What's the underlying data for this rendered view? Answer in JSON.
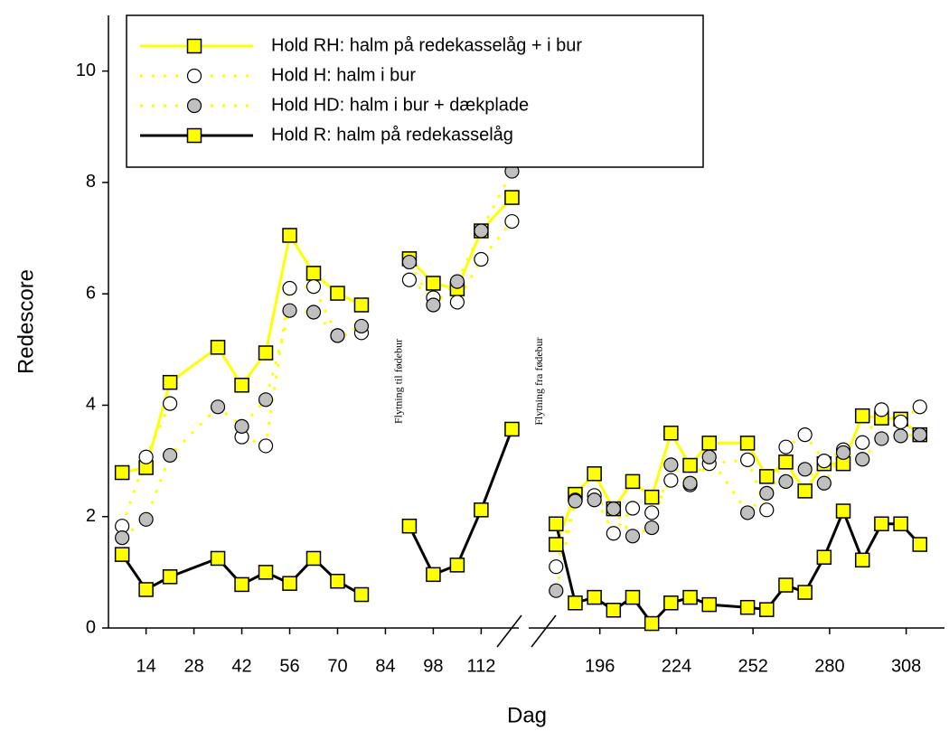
{
  "chart_data": {
    "type": "line",
    "xlabel": "Dag",
    "ylabel": "Redescore",
    "xlim": [
      3,
      322
    ],
    "x_break": [
      123,
      170
    ],
    "ylim": [
      0,
      11
    ],
    "yticks": [
      0,
      2,
      4,
      6,
      8,
      10
    ],
    "xticks": [
      14,
      28,
      42,
      56,
      70,
      84,
      98,
      112,
      196,
      224,
      252,
      280,
      308
    ],
    "x": [
      7,
      14,
      21,
      35,
      42,
      49,
      56,
      63,
      70,
      77,
      84,
      91,
      98,
      105,
      112,
      121,
      150,
      180,
      187,
      194,
      201,
      208,
      215,
      222,
      229,
      236,
      250,
      257,
      264,
      271,
      278,
      285,
      292,
      299,
      306,
      313
    ],
    "series": [
      {
        "name": "Hold RH: halm på redekasselåg + i bur",
        "color": "#ffff00",
        "line_style": "solid",
        "marker": "square",
        "marker_color": "#ffff00",
        "values": [
          2.79,
          2.88,
          4.41,
          5.04,
          4.36,
          4.94,
          7.05,
          6.37,
          6.01,
          5.8,
          null,
          6.63,
          6.19,
          6.09,
          7.13,
          7.73,
          null,
          1.5,
          2.4,
          2.77,
          2.14,
          2.63,
          2.35,
          3.5,
          2.92,
          3.32,
          3.32,
          2.72,
          2.98,
          2.46,
          2.95,
          2.95,
          3.81,
          3.77,
          3.75,
          3.47
        ]
      },
      {
        "name": "Hold H: halm i bur",
        "color": "#ffff00",
        "line_style": "dotted",
        "marker": "circle",
        "marker_color": "#ffffff",
        "values": [
          1.83,
          3.07,
          4.03,
          null,
          3.43,
          3.27,
          6.1,
          6.13,
          5.25,
          5.3,
          null,
          6.25,
          5.93,
          5.85,
          6.62,
          7.3,
          null,
          1.1,
          2.3,
          2.38,
          1.7,
          2.15,
          2.07,
          2.65,
          2.57,
          2.95,
          3.02,
          2.12,
          3.25,
          3.47,
          3.0,
          3.2,
          3.33,
          3.92,
          3.7,
          3.97
        ]
      },
      {
        "name": "Hold HD: halm i bur + dækplade",
        "color": "#ffff00",
        "line_style": "dotted",
        "marker": "circle",
        "marker_color": "#c0c0c0",
        "values": [
          1.62,
          1.95,
          3.1,
          3.97,
          3.62,
          4.1,
          5.7,
          5.67,
          5.25,
          5.42,
          null,
          6.57,
          5.8,
          6.22,
          7.13,
          8.2,
          null,
          0.67,
          2.28,
          2.3,
          2.14,
          1.65,
          1.8,
          2.93,
          2.6,
          3.07,
          2.07,
          2.42,
          2.63,
          2.85,
          2.6,
          3.15,
          3.03,
          3.4,
          3.45,
          3.47
        ]
      },
      {
        "name": "Hold R: halm på redekasselåg",
        "color": "#000000",
        "line_style": "solid",
        "marker": "square",
        "marker_color": "#ffff00",
        "values": [
          1.32,
          0.69,
          0.92,
          1.25,
          0.78,
          1.0,
          0.8,
          1.25,
          0.84,
          0.6,
          null,
          1.83,
          0.96,
          1.13,
          2.12,
          3.57,
          null,
          1.87,
          0.45,
          0.55,
          0.32,
          0.55,
          0.08,
          0.45,
          0.55,
          0.42,
          0.37,
          0.33,
          0.77,
          0.64,
          1.27,
          2.1,
          1.22,
          1.87,
          1.87,
          1.5
        ]
      }
    ],
    "annotations": [
      {
        "text": "Flytning til fødebur",
        "x": 88
      },
      {
        "text": "Flytning fra fødebur",
        "x": 174
      }
    ]
  }
}
